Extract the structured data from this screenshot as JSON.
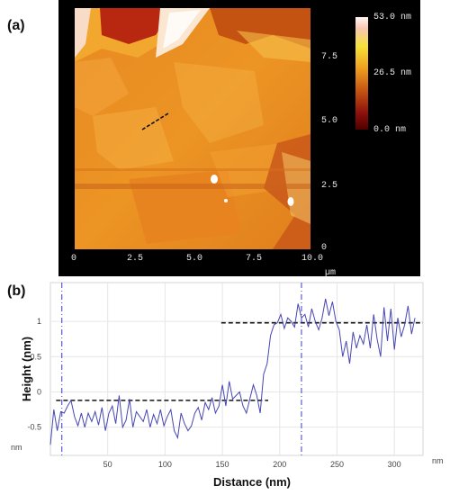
{
  "panels": {
    "a_label": "(a)",
    "b_label": "(b)"
  },
  "afm": {
    "x_ticks": [
      "0",
      "2.5",
      "5.0",
      "7.5",
      "10.0"
    ],
    "y_ticks": [
      "0",
      "2.5",
      "5.0",
      "7.5"
    ],
    "unit": "µm",
    "colorbar_labels": [
      "53.0 nm",
      "26.5 nm",
      "0.0 nm"
    ],
    "colors": {
      "low": "#500000",
      "mid": "#f0a020",
      "high": "#fff5f1",
      "background": "#000000"
    }
  },
  "chart_data": {
    "type": "line",
    "xlabel": "Distance (nm)",
    "ylabel": "Height (nm)",
    "x_unit": "nm",
    "y_unit": "nm",
    "x_ticks": [
      "50",
      "100",
      "150",
      "200",
      "250",
      "300"
    ],
    "y_ticks": [
      "1",
      "0.5",
      "0",
      "-0.5"
    ],
    "xlim": [
      0,
      325
    ],
    "ylim": [
      -0.9,
      1.55
    ],
    "grid": true,
    "x": [
      0,
      3,
      6,
      9,
      12,
      15,
      18,
      21,
      24,
      27,
      30,
      33,
      36,
      39,
      42,
      45,
      48,
      51,
      54,
      57,
      60,
      63,
      66,
      69,
      72,
      75,
      78,
      81,
      84,
      87,
      90,
      93,
      96,
      99,
      102,
      105,
      108,
      111,
      114,
      117,
      120,
      123,
      126,
      129,
      132,
      135,
      138,
      141,
      144,
      147,
      150,
      153,
      156,
      159,
      162,
      165,
      168,
      171,
      174,
      177,
      180,
      183,
      186,
      189,
      192,
      195,
      198,
      201,
      204,
      207,
      210,
      213,
      216,
      219,
      222,
      225,
      228,
      231,
      234,
      237,
      240,
      243,
      246,
      249,
      252,
      255,
      258,
      261,
      264,
      267,
      270,
      273,
      276,
      279,
      282,
      285,
      288,
      291,
      294,
      297,
      300,
      303,
      306,
      309,
      312,
      315,
      318
    ],
    "values": [
      -0.75,
      -0.25,
      -0.55,
      -0.28,
      -0.3,
      -0.2,
      -0.12,
      -0.35,
      -0.48,
      -0.3,
      -0.5,
      -0.3,
      -0.42,
      -0.28,
      -0.47,
      -0.22,
      -0.55,
      -0.3,
      -0.2,
      -0.45,
      -0.05,
      -0.5,
      -0.4,
      -0.1,
      -0.5,
      -0.28,
      -0.35,
      -0.42,
      -0.25,
      -0.5,
      -0.32,
      -0.45,
      -0.25,
      -0.48,
      -0.35,
      -0.25,
      -0.55,
      -0.65,
      -0.3,
      -0.45,
      -0.55,
      -0.48,
      -0.3,
      -0.22,
      -0.4,
      -0.15,
      -0.25,
      -0.08,
      -0.3,
      -0.2,
      0.1,
      -0.2,
      0.15,
      -0.1,
      -0.05,
      0.0,
      -0.2,
      -0.3,
      -0.1,
      0.1,
      -0.05,
      -0.3,
      0.25,
      0.4,
      0.8,
      0.95,
      0.98,
      1.1,
      0.9,
      1.05,
      1.0,
      0.92,
      1.25,
      1.05,
      1.1,
      0.92,
      1.18,
      1.0,
      0.88,
      1.05,
      1.32,
      1.08,
      1.28,
      1.0,
      0.88,
      0.5,
      0.72,
      0.4,
      0.85,
      0.62,
      0.8,
      0.68,
      0.95,
      0.62,
      1.1,
      0.75,
      0.5,
      1.2,
      0.72,
      1.18,
      0.6,
      1.05,
      0.78,
      0.95,
      1.22,
      0.82,
      1.05
    ],
    "reference_lines": [
      {
        "value": -0.12,
        "x_range": [
          5,
          190
        ]
      },
      {
        "value": 0.98,
        "x_range": [
          149,
          325
        ]
      }
    ],
    "markers_x": [
      10,
      219
    ]
  }
}
